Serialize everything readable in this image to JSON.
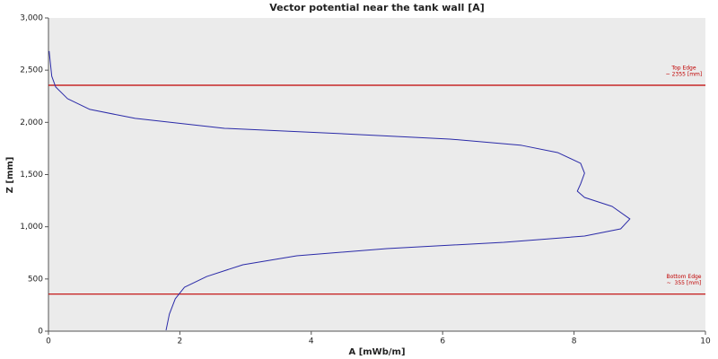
{
  "chart_data": {
    "type": "line",
    "title": "Vector potential near the tank wall [A]",
    "xlabel": "A [mWb/m]",
    "ylabel": "Z [mm]",
    "color": "#2a2aa8",
    "x": [
      0.01,
      0.05,
      0.11,
      0.29,
      0.63,
      1.32,
      2.68,
      4.74,
      6.11,
      7.2,
      7.75,
      8.1,
      8.16,
      8.1,
      8.05,
      8.16,
      8.58,
      8.85,
      8.71,
      8.16,
      6.93,
      5.15,
      3.78,
      2.96,
      2.41,
      2.07,
      1.93,
      1.84,
      1.79
    ],
    "values": [
      2683,
      2442,
      2339,
      2227,
      2124,
      2038,
      1943,
      1883,
      1840,
      1780,
      1711,
      1608,
      1513,
      1410,
      1341,
      1281,
      1195,
      1075,
      980,
      911,
      851,
      791,
      722,
      636,
      524,
      421,
      310,
      163,
      9
    ],
    "xlim": [
      0,
      10
    ],
    "xticks": [
      0,
      2,
      4,
      6,
      8,
      10
    ],
    "ylim": [
      0,
      3000
    ],
    "yticks": [
      0,
      500,
      {
        "value": 1000,
        "label": "1,000"
      },
      {
        "value": 1500,
        "label": "1,500"
      },
      {
        "value": 2000,
        "label": "2,000"
      },
      {
        "value": 2500,
        "label": "2,500"
      },
      {
        "value": 3000,
        "label": "3,000"
      }
    ],
    "hlines": [
      {
        "value": 2355,
        "label": "Top Edge",
        "sublabel": "~ 2355 [mm]",
        "color": "#c00000"
      },
      {
        "value": 355,
        "label": "Bottom Edge",
        "sublabel": "~  355 [mm]",
        "color": "#c00000"
      }
    ]
  }
}
